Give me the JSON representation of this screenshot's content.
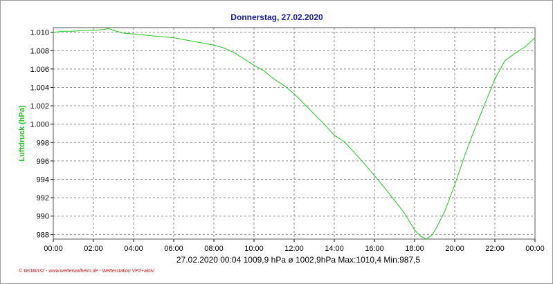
{
  "chart_data": {
    "type": "line",
    "title": "Donnerstag, 27.02.2020",
    "ylabel": "Luftdruck  (hPa)",
    "xlabel": "",
    "x_ticks": [
      "00:00",
      "02:00",
      "04:00",
      "06:00",
      "08:00",
      "10:00",
      "12:00",
      "14:00",
      "16:00",
      "18:00",
      "20:00",
      "22:00",
      "00:00"
    ],
    "y_ticks": [
      "1.010",
      "1.008",
      "1.006",
      "1.004",
      "1.002",
      "1.000",
      "998",
      "996",
      "994",
      "992",
      "990",
      "988"
    ],
    "xlim": [
      0,
      24
    ],
    "ylim": [
      987.5,
      1010.5
    ],
    "grid": true,
    "colors": {
      "line": "#1ec81e",
      "title": "#1a1aa0",
      "ylabel": "#1ec81e",
      "grid": "#888888",
      "plot_border": "#555555",
      "footer": "#cc1010"
    },
    "series": [
      {
        "x": [
          0,
          0.5,
          1,
          1.5,
          2,
          2.5,
          2.75,
          3,
          3.5,
          4,
          4.5,
          5,
          5.5,
          6,
          6.5,
          7,
          7.5,
          8,
          8.5,
          9,
          9.5,
          10,
          10.5,
          11,
          11.5,
          12,
          12.5,
          13,
          13.5,
          14,
          14.5,
          15,
          15.5,
          16,
          16.5,
          17,
          17.5,
          18,
          18.3,
          18.6,
          18.9,
          19.2,
          19.5,
          20,
          20.5,
          21,
          21.5,
          22,
          22.5,
          23,
          23.5,
          24
        ],
        "values": [
          1010.0,
          1010.1,
          1010.1,
          1010.2,
          1010.2,
          1010.3,
          1010.4,
          1010.2,
          1009.9,
          1009.8,
          1009.7,
          1009.6,
          1009.5,
          1009.4,
          1009.2,
          1009.0,
          1008.8,
          1008.6,
          1008.3,
          1007.8,
          1007.1,
          1006.4,
          1005.8,
          1004.9,
          1004.2,
          1003.3,
          1002.2,
          1001.1,
          1000.0,
          998.8,
          998.1,
          996.9,
          995.7,
          994.4,
          993.1,
          991.7,
          990.3,
          988.5,
          987.8,
          987.5,
          988.0,
          989.2,
          990.5,
          993.4,
          996.6,
          999.5,
          1002.2,
          1004.9,
          1006.9,
          1007.7,
          1008.4,
          1009.4
        ]
      }
    ]
  },
  "footer": {
    "stats": "27.02.2020  00:04   1009,9 hPa   ø 1002,9hPa  Max:1010,4  Min:987,5",
    "credit": "© WsWin32 - www.wetterwalheim.de - Wetterstation VP2+aktiv"
  }
}
